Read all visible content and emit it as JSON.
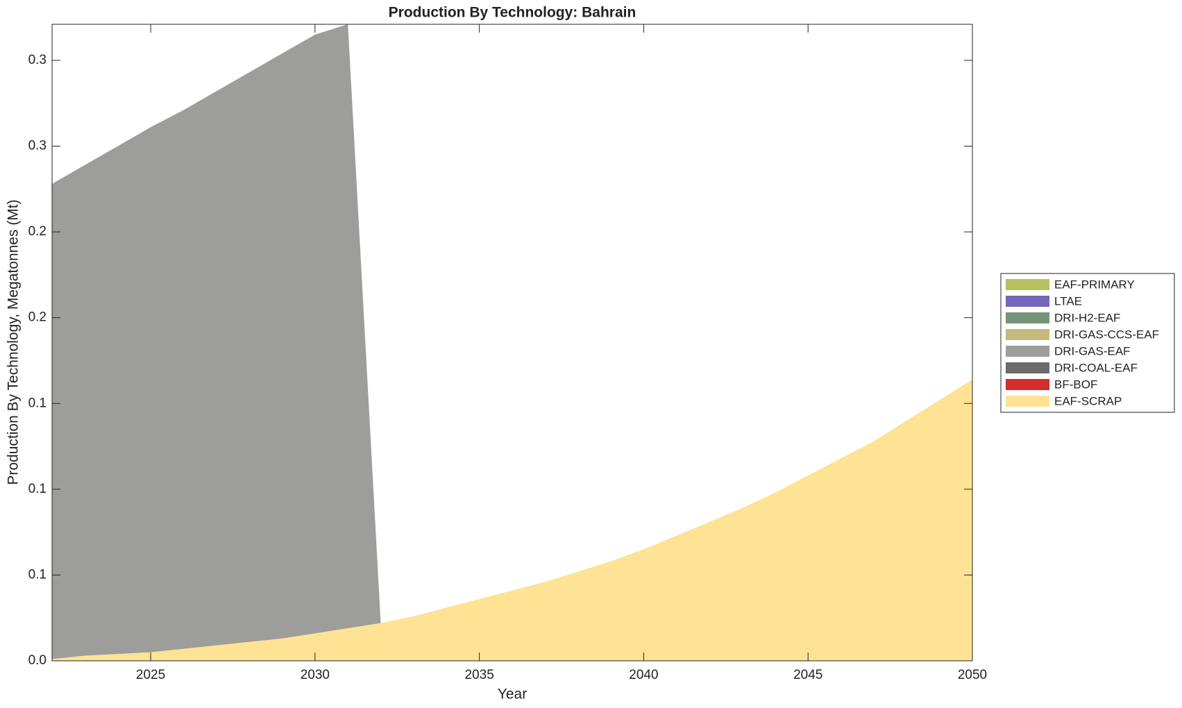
{
  "chart_data": {
    "type": "stacked-area",
    "title": "Production By Technology: Bahrain",
    "xlabel": "Year",
    "ylabel": "Production By Technology, Megatonnes (Mt)",
    "x": [
      2022,
      2023,
      2024,
      2025,
      2026,
      2027,
      2028,
      2029,
      2030,
      2031,
      2032,
      2033,
      2034,
      2035,
      2036,
      2037,
      2038,
      2039,
      2040,
      2041,
      2042,
      2043,
      2044,
      2045,
      2046,
      2047,
      2048,
      2049,
      2050
    ],
    "series": [
      {
        "name": "EAF-PRIMARY",
        "color": "#b5c05f",
        "values": [
          0,
          0,
          0,
          0,
          0,
          0,
          0,
          0,
          0,
          0,
          0,
          0,
          0,
          0,
          0,
          0,
          0,
          0,
          0,
          0,
          0,
          0,
          0,
          0,
          0,
          0,
          0,
          0,
          0
        ]
      },
      {
        "name": "LTAE",
        "color": "#7466b8",
        "values": [
          0,
          0,
          0,
          0,
          0,
          0,
          0,
          0,
          0,
          0,
          0,
          0,
          0,
          0,
          0,
          0,
          0,
          0,
          0,
          0,
          0,
          0,
          0,
          0,
          0,
          0,
          0,
          0,
          0
        ]
      },
      {
        "name": "DRI-H2-EAF",
        "color": "#74957a",
        "values": [
          0,
          0,
          0,
          0,
          0,
          0,
          0,
          0,
          0,
          0,
          0,
          0,
          0,
          0,
          0,
          0,
          0,
          0,
          0,
          0,
          0,
          0,
          0,
          0,
          0,
          0,
          0,
          0,
          0
        ]
      },
      {
        "name": "DRI-GAS-CCS-EAF",
        "color": "#c4ba7c",
        "values": [
          0,
          0,
          0,
          0,
          0,
          0,
          0,
          0,
          0,
          0,
          0,
          0,
          0,
          0,
          0,
          0,
          0,
          0,
          0,
          0,
          0,
          0,
          0,
          0,
          0,
          0,
          0,
          0,
          0
        ]
      },
      {
        "name": "DRI-GAS-EAF",
        "color": "#9d9d9b",
        "values": [
          0.277,
          0.286,
          0.296,
          0.306,
          0.314,
          0.323,
          0.332,
          0.341,
          0.349,
          0.352,
          0,
          0,
          0,
          0,
          0,
          0,
          0,
          0,
          0,
          0,
          0,
          0,
          0,
          0,
          0,
          0,
          0,
          0,
          0
        ]
      },
      {
        "name": "DRI-COAL-EAF",
        "color": "#6b6b6b",
        "values": [
          0,
          0,
          0,
          0,
          0,
          0,
          0,
          0,
          0,
          0,
          0,
          0,
          0,
          0,
          0,
          0,
          0,
          0,
          0,
          0,
          0,
          0,
          0,
          0,
          0,
          0,
          0,
          0,
          0
        ]
      },
      {
        "name": "BF-BOF",
        "color": "#d22d28",
        "values": [
          0,
          0,
          0,
          0,
          0,
          0,
          0,
          0,
          0,
          0,
          0,
          0,
          0,
          0,
          0,
          0,
          0,
          0,
          0,
          0,
          0,
          0,
          0,
          0,
          0,
          0,
          0,
          0,
          0
        ]
      },
      {
        "name": "EAF-SCRAP",
        "color": "#fee394",
        "values": [
          0.001,
          0.003,
          0.004,
          0.005,
          0.007,
          0.009,
          0.011,
          0.013,
          0.016,
          0.019,
          0.022,
          0.026,
          0.031,
          0.036,
          0.041,
          0.046,
          0.052,
          0.058,
          0.065,
          0.073,
          0.081,
          0.089,
          0.098,
          0.108,
          0.118,
          0.128,
          0.14,
          0.152,
          0.164
        ]
      }
    ],
    "xlim": [
      2022,
      2050
    ],
    "xticks": [
      2025,
      2030,
      2035,
      2040,
      2045,
      2050
    ],
    "ylim": [
      0,
      0.371
    ],
    "yticks": [
      {
        "value": 0,
        "label": "0.0"
      },
      {
        "value": 0.05,
        "label": "0.1"
      },
      {
        "value": 0.1,
        "label": "0.1"
      },
      {
        "value": 0.15,
        "label": "0.1"
      },
      {
        "value": 0.2,
        "label": "0.2"
      },
      {
        "value": 0.25,
        "label": "0.2"
      },
      {
        "value": 0.3,
        "label": "0.3"
      },
      {
        "value": 0.35,
        "label": "0.3"
      }
    ],
    "legend": "right"
  }
}
